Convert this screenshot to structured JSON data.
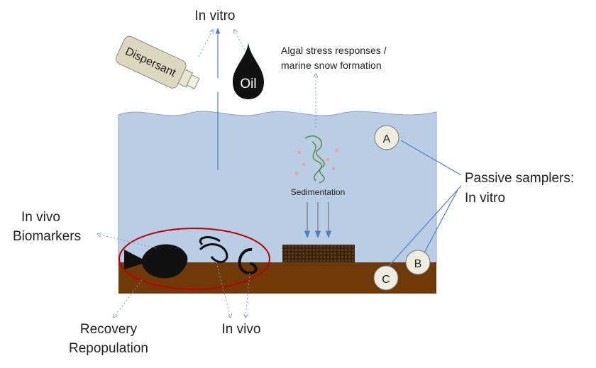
{
  "top_label": "In vitro",
  "dispersant": "Dispersant",
  "oil": "Oil",
  "algal": [
    "Algal stress responses /",
    "marine snow formation"
  ],
  "sedimentation": "Sedimentation",
  "biomarkers": [
    "In vivo",
    "Biomarkers"
  ],
  "passive_samplers": [
    "Passive samplers:",
    "In vitro"
  ],
  "samplers": [
    "A",
    "B",
    "C"
  ],
  "recovery": [
    "Recovery",
    "Repopulation"
  ],
  "bottom_label": "In vivo"
}
